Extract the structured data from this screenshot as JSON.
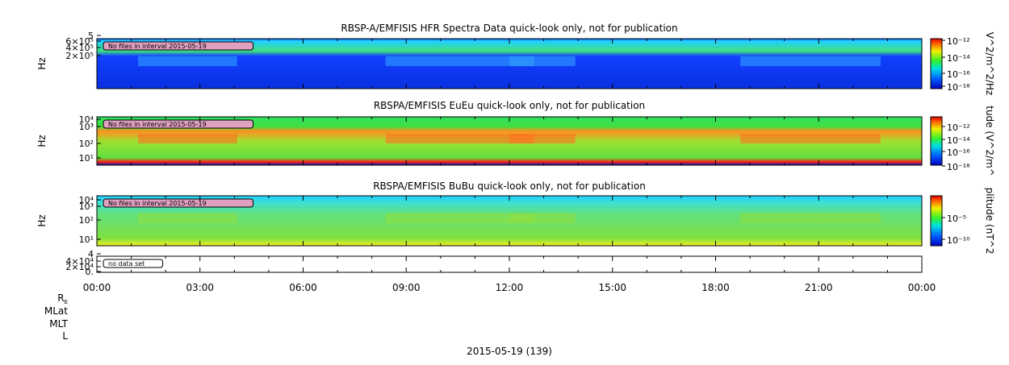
{
  "panels": [
    {
      "title": "RBSP-A/EMFISIS  HFR Spectra Data quick-look only, not for publication",
      "ylabel": "Hz",
      "yticks": [
        "5",
        "6×10⁵",
        "4×10⁵",
        "2×10⁵"
      ],
      "note": "No files in interval 2015-05-19",
      "colorbar_label": "V^2/m^2/Hz",
      "colorbar_ticks": [
        "10⁻¹²",
        "10⁻¹⁴",
        "10⁻¹⁶",
        "10⁻¹⁸"
      ]
    },
    {
      "title": "RBSPA/EMFISIS  EuEu quick-look only, not for publication",
      "ylabel": "Hz",
      "yticks": [
        "10⁴",
        "10³",
        "10²",
        "10¹"
      ],
      "note": "No files in interval 2015-05-19",
      "colorbar_label": "tude (V^2/m^",
      "colorbar_ticks": [
        "10⁻¹²",
        "10⁻¹⁴",
        "10⁻¹⁶",
        "10⁻¹⁸"
      ]
    },
    {
      "title": "RBSPA/EMFISIS  BuBu quick-look only, not for publication",
      "ylabel": "Hz",
      "yticks": [
        "10⁴",
        "10³",
        "10²",
        "10¹"
      ],
      "note": "No files in interval 2015-05-19",
      "colorbar_label": "plitude (nT^2",
      "colorbar_ticks": [
        "10⁻⁵",
        "10⁻¹⁰"
      ]
    },
    {
      "yticks": [
        "4",
        "4×10⁴",
        "2×10⁴",
        "0."
      ],
      "note": "no data set"
    }
  ],
  "xticks": [
    "00:00",
    "03:00",
    "06:00",
    "09:00",
    "12:00",
    "15:00",
    "18:00",
    "21:00",
    "00:00"
  ],
  "ephemeris": [
    {
      "text": "R",
      "subscript": "E"
    },
    {
      "text": "MLat"
    },
    {
      "text": "MLT"
    },
    {
      "text": "L"
    }
  ],
  "date": "2015-05-19 (139)"
}
